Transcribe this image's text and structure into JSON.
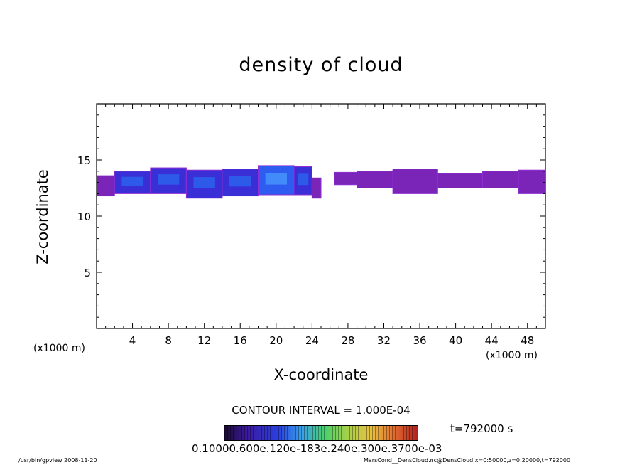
{
  "chart_data": {
    "type": "heatmap",
    "title": "density of cloud",
    "xlabel": "X-coordinate",
    "ylabel": "Z-coordinate",
    "x_unit": "(x1000 m)",
    "xlim": [
      0,
      50
    ],
    "ylim": [
      0,
      20
    ],
    "x_ticks": [
      "4",
      "8",
      "12",
      "16",
      "20",
      "24",
      "28",
      "32",
      "36",
      "40",
      "44",
      "48"
    ],
    "y_ticks": [
      "5",
      "10",
      "15"
    ],
    "contour_interval": "CONTOUR INTERVAL = 1.000E-04",
    "time": "t=792000 s",
    "colorbar_labels": "0.10000.600e.120e-183e.240e.300e.3700e-03",
    "regions": [
      {
        "x": [
          0.0,
          2.0
        ],
        "z": [
          11.8,
          13.6
        ],
        "level": 2
      },
      {
        "x": [
          2.0,
          6.0
        ],
        "z": [
          12.0,
          14.0
        ],
        "level": 1
      },
      {
        "x": [
          6.0,
          10.0
        ],
        "z": [
          12.0,
          14.3
        ],
        "level": 1
      },
      {
        "x": [
          10.0,
          14.0
        ],
        "z": [
          11.6,
          14.1
        ],
        "level": 1
      },
      {
        "x": [
          14.0,
          18.0
        ],
        "z": [
          11.8,
          14.2
        ],
        "level": 1
      },
      {
        "x": [
          18.0,
          22.0
        ],
        "z": [
          11.9,
          14.5
        ],
        "level": 0
      },
      {
        "x": [
          22.0,
          24.0
        ],
        "z": [
          11.9,
          14.4
        ],
        "level": 1
      },
      {
        "x": [
          24.0,
          25.0
        ],
        "z": [
          11.6,
          13.4
        ],
        "level": 2
      },
      {
        "x": [
          26.5,
          29.0
        ],
        "z": [
          12.8,
          13.9
        ],
        "level": 2
      },
      {
        "x": [
          29.0,
          33.0
        ],
        "z": [
          12.5,
          14.0
        ],
        "level": 2
      },
      {
        "x": [
          33.0,
          38.0
        ],
        "z": [
          12.0,
          14.2
        ],
        "level": 2
      },
      {
        "x": [
          38.0,
          43.0
        ],
        "z": [
          12.5,
          13.8
        ],
        "level": 2
      },
      {
        "x": [
          43.0,
          47.0
        ],
        "z": [
          12.5,
          14.0
        ],
        "level": 2
      },
      {
        "x": [
          47.0,
          50.0
        ],
        "z": [
          12.0,
          14.1
        ],
        "level": 2
      }
    ],
    "colors": {
      "level0": "#2f5cf0",
      "level1": "#3a2fd6",
      "level2": "#7a24b8",
      "edge": "#8f2fd4"
    }
  },
  "footer": {
    "left": "/usr/bin/gpview   2008-11-20",
    "right": "MarsCond__DensCloud.nc@DensCloud,x=0:50000,z=0:20000,t=792000"
  }
}
